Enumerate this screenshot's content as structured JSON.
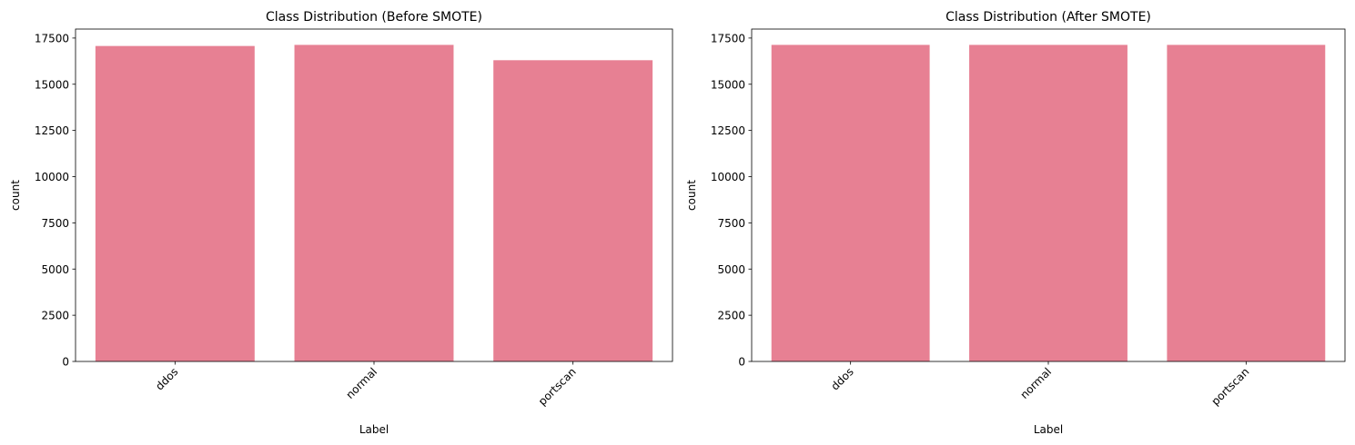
{
  "chart_data": [
    {
      "type": "bar",
      "title": "Class Distribution (Before SMOTE)",
      "xlabel": "Label",
      "ylabel": "count",
      "categories": [
        "ddos",
        "normal",
        "portscan"
      ],
      "values": [
        17070,
        17130,
        16300
      ],
      "yticks": [
        0,
        2500,
        5000,
        7500,
        10000,
        12500,
        15000,
        17500
      ],
      "ylim": [
        0,
        17986
      ],
      "bar_color": "#e78093",
      "grid": false,
      "legend": "none"
    },
    {
      "type": "bar",
      "title": "Class Distribution (After SMOTE)",
      "xlabel": "Label",
      "ylabel": "count",
      "categories": [
        "ddos",
        "normal",
        "portscan"
      ],
      "values": [
        17130,
        17130,
        17130
      ],
      "yticks": [
        0,
        2500,
        5000,
        7500,
        10000,
        12500,
        15000,
        17500
      ],
      "ylim": [
        0,
        17986
      ],
      "bar_color": "#e78093",
      "grid": false,
      "legend": "none"
    }
  ]
}
